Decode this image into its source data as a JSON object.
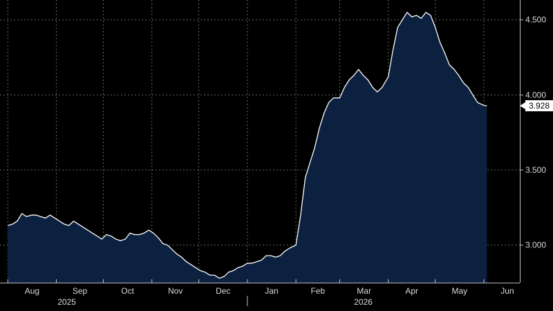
{
  "chart_data": {
    "type": "area",
    "title": "",
    "xlabel": "",
    "ylabel": "",
    "x_axis": {
      "month_labels": [
        "Aug",
        "Sep",
        "Oct",
        "Nov",
        "Dec",
        "Jan",
        "Feb",
        "Mar",
        "Apr",
        "May",
        "Jun"
      ],
      "year_labels": [
        "2025",
        "2026"
      ]
    },
    "y_axis": {
      "side": "right",
      "ticks": [
        3.0,
        3.5,
        4.0,
        4.5
      ],
      "tick_labels": [
        "3.000",
        "3.500",
        "4.000",
        "4.500"
      ],
      "ylim": [
        2.75,
        4.6
      ],
      "grid": true
    },
    "last_value": 3.928,
    "last_value_label": "3.928",
    "x_range": [
      "2025-08-01",
      "2026-06-27"
    ],
    "series": [
      {
        "values": [
          [
            "2025-08-01",
            3.13
          ],
          [
            "2025-08-04",
            3.14
          ],
          [
            "2025-08-07",
            3.16
          ],
          [
            "2025-08-10",
            3.21
          ],
          [
            "2025-08-13",
            3.19
          ],
          [
            "2025-08-16",
            3.2
          ],
          [
            "2025-08-19",
            3.2
          ],
          [
            "2025-08-22",
            3.19
          ],
          [
            "2025-08-25",
            3.18
          ],
          [
            "2025-08-28",
            3.2
          ],
          [
            "2025-08-31",
            3.18
          ],
          [
            "2025-09-03",
            3.16
          ],
          [
            "2025-09-06",
            3.14
          ],
          [
            "2025-09-09",
            3.13
          ],
          [
            "2025-09-12",
            3.16
          ],
          [
            "2025-09-15",
            3.14
          ],
          [
            "2025-09-18",
            3.12
          ],
          [
            "2025-09-21",
            3.1
          ],
          [
            "2025-09-24",
            3.08
          ],
          [
            "2025-09-27",
            3.06
          ],
          [
            "2025-09-30",
            3.04
          ],
          [
            "2025-10-03",
            3.07
          ],
          [
            "2025-10-06",
            3.06
          ],
          [
            "2025-10-09",
            3.04
          ],
          [
            "2025-10-12",
            3.03
          ],
          [
            "2025-10-15",
            3.04
          ],
          [
            "2025-10-18",
            3.08
          ],
          [
            "2025-10-21",
            3.07
          ],
          [
            "2025-10-24",
            3.07
          ],
          [
            "2025-10-27",
            3.08
          ],
          [
            "2025-10-30",
            3.1
          ],
          [
            "2025-11-02",
            3.08
          ],
          [
            "2025-11-05",
            3.05
          ],
          [
            "2025-11-08",
            3.01
          ],
          [
            "2025-11-11",
            3.0
          ],
          [
            "2025-11-14",
            2.97
          ],
          [
            "2025-11-17",
            2.94
          ],
          [
            "2025-11-20",
            2.92
          ],
          [
            "2025-11-23",
            2.89
          ],
          [
            "2025-11-26",
            2.87
          ],
          [
            "2025-11-29",
            2.85
          ],
          [
            "2025-12-02",
            2.83
          ],
          [
            "2025-12-05",
            2.82
          ],
          [
            "2025-12-08",
            2.8
          ],
          [
            "2025-12-11",
            2.8
          ],
          [
            "2025-12-14",
            2.78
          ],
          [
            "2025-12-17",
            2.79
          ],
          [
            "2025-12-20",
            2.82
          ],
          [
            "2025-12-23",
            2.83
          ],
          [
            "2025-12-26",
            2.85
          ],
          [
            "2025-12-29",
            2.86
          ],
          [
            "2026-01-01",
            2.88
          ],
          [
            "2026-01-04",
            2.88
          ],
          [
            "2026-01-07",
            2.89
          ],
          [
            "2026-01-10",
            2.9
          ],
          [
            "2026-01-13",
            2.93
          ],
          [
            "2026-01-16",
            2.93
          ],
          [
            "2026-01-19",
            2.92
          ],
          [
            "2026-01-22",
            2.93
          ],
          [
            "2026-01-25",
            2.96
          ],
          [
            "2026-01-28",
            2.98
          ],
          [
            "2026-02-01",
            3.0
          ],
          [
            "2026-02-04",
            3.2
          ],
          [
            "2026-02-07",
            3.45
          ],
          [
            "2026-02-10",
            3.55
          ],
          [
            "2026-02-13",
            3.65
          ],
          [
            "2026-02-16",
            3.78
          ],
          [
            "2026-02-19",
            3.88
          ],
          [
            "2026-02-22",
            3.95
          ],
          [
            "2026-02-25",
            3.98
          ],
          [
            "2026-03-01",
            3.98
          ],
          [
            "2026-03-04",
            4.05
          ],
          [
            "2026-03-07",
            4.1
          ],
          [
            "2026-03-10",
            4.13
          ],
          [
            "2026-03-13",
            4.17
          ],
          [
            "2026-03-16",
            4.13
          ],
          [
            "2026-03-19",
            4.1
          ],
          [
            "2026-03-22",
            4.05
          ],
          [
            "2026-03-25",
            4.02
          ],
          [
            "2026-03-28",
            4.05
          ],
          [
            "2026-04-01",
            4.12
          ],
          [
            "2026-04-04",
            4.3
          ],
          [
            "2026-04-07",
            4.45
          ],
          [
            "2026-04-10",
            4.5
          ],
          [
            "2026-04-13",
            4.55
          ],
          [
            "2026-04-16",
            4.52
          ],
          [
            "2026-04-19",
            4.53
          ],
          [
            "2026-04-22",
            4.51
          ],
          [
            "2026-04-25",
            4.55
          ],
          [
            "2026-04-28",
            4.53
          ],
          [
            "2026-05-01",
            4.45
          ],
          [
            "2026-05-04",
            4.35
          ],
          [
            "2026-05-07",
            4.28
          ],
          [
            "2026-05-10",
            4.2
          ],
          [
            "2026-05-13",
            4.17
          ],
          [
            "2026-05-16",
            4.13
          ],
          [
            "2026-05-19",
            4.08
          ],
          [
            "2026-05-22",
            4.05
          ],
          [
            "2026-05-25",
            4.0
          ],
          [
            "2026-05-28",
            3.95
          ],
          [
            "2026-06-01",
            3.93
          ],
          [
            "2026-06-03",
            3.928
          ]
        ]
      }
    ],
    "colors": {
      "background": "#000000",
      "area_fill": "#0c2040",
      "line": "#ffffff",
      "grid": "#8a8a8a",
      "axis": "#bfbfbf",
      "text": "#d9d9d9",
      "last_value_box": "#ffffff"
    }
  }
}
